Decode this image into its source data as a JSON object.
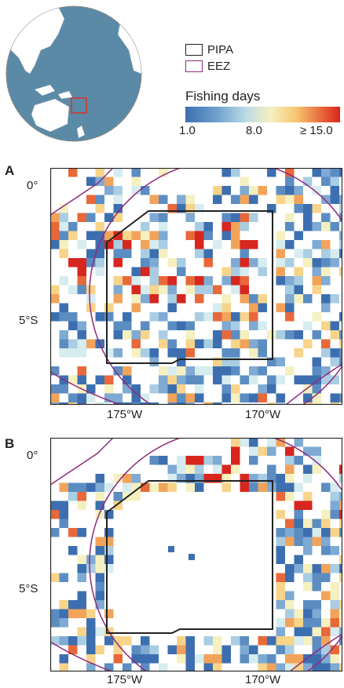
{
  "legend": {
    "pipa_label": "PIPA",
    "eez_label": "EEZ",
    "colorbar_title": "Fishing days",
    "colorbar_ticks": [
      "1.0",
      "8.0",
      "≥ 15.0"
    ],
    "pipa_color": "#222222",
    "eez_color": "#8e2a7e"
  },
  "panels": [
    {
      "letter": "A",
      "y_ticks": [
        "0°",
        "5°S"
      ],
      "x_ticks": [
        "175°W",
        "170°W"
      ]
    },
    {
      "letter": "B",
      "y_ticks": [
        "0°",
        "5°S"
      ],
      "x_ticks": [
        "175°W",
        "170°W"
      ]
    }
  ],
  "globe": {
    "ocean_color": "#5b8aa6",
    "land_color": "#ffffff",
    "marker_color": "#d9302c"
  },
  "colors": {
    "low": "#3d6fb0",
    "mid": "#f5f0c0",
    "high": "#d7261e"
  }
}
